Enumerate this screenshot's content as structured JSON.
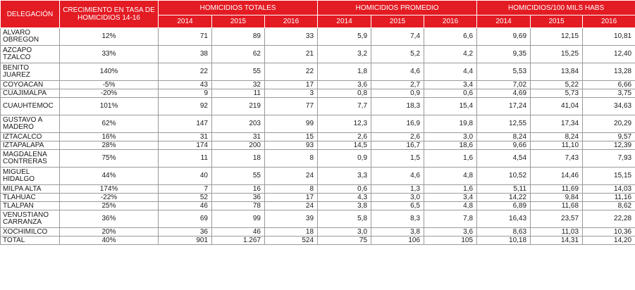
{
  "headers": {
    "delegacion": "DELEGACIÓN",
    "crecimiento": "CRECIMIENTO EN TASA DE HOMICIDIOS 14-16",
    "groups": [
      "HOMICIDIOS TOTALES",
      "HOMICIDIOS PROMEDIO",
      "HOMICIDIOS/100 MILS HABS"
    ],
    "years": [
      "2014",
      "2015",
      "2016"
    ]
  },
  "rows": [
    {
      "name": "ALVARO OBREGON",
      "growth": "12%",
      "tot": [
        "71",
        "89",
        "33"
      ],
      "prom": [
        "5,9",
        "7,4",
        "6,6"
      ],
      "rate": [
        "9,69",
        "12,15",
        "10,81"
      ]
    },
    {
      "name": "AZCAPO TZALCO",
      "growth": "33%",
      "tot": [
        "38",
        "62",
        "21"
      ],
      "prom": [
        "3,2",
        "5,2",
        "4,2"
      ],
      "rate": [
        "9,35",
        "15,25",
        "12,40"
      ]
    },
    {
      "name": "BENITO JUAREZ",
      "growth": "140%",
      "tot": [
        "22",
        "55",
        "22"
      ],
      "prom": [
        "1,8",
        "4,6",
        "4,4"
      ],
      "rate": [
        "5,53",
        "13,84",
        "13,28"
      ]
    },
    {
      "name": "COYOACAN",
      "growth": "-5%",
      "tot": [
        "43",
        "32",
        "17"
      ],
      "prom": [
        "3,6",
        "2,7",
        "3,4"
      ],
      "rate": [
        "7,02",
        "5,22",
        "6,66"
      ]
    },
    {
      "name": "CUAJIMALPA",
      "growth": "-20%",
      "tot": [
        "9",
        "11",
        "3"
      ],
      "prom": [
        "0,8",
        "0,9",
        "0,6"
      ],
      "rate": [
        "4,69",
        "5,73",
        "3,75"
      ]
    },
    {
      "name": "CUAUHTEMOC",
      "growth": "101%",
      "tot": [
        "92",
        "219",
        "77"
      ],
      "prom": [
        "7,7",
        "18,3",
        "15,4"
      ],
      "rate": [
        "17,24",
        "41,04",
        "34,63"
      ]
    },
    {
      "name": "GUSTAVO A MADERO",
      "growth": "62%",
      "tot": [
        "147",
        "203",
        "99"
      ],
      "prom": [
        "12,3",
        "16,9",
        "19,8"
      ],
      "rate": [
        "12,55",
        "17,34",
        "20,29"
      ]
    },
    {
      "name": "IZTACALCO",
      "growth": "16%",
      "tot": [
        "31",
        "31",
        "15"
      ],
      "prom": [
        "2,6",
        "2,6",
        "3,0"
      ],
      "rate": [
        "8,24",
        "8,24",
        "9,57"
      ]
    },
    {
      "name": "IZTAPALAPA",
      "growth": "28%",
      "tot": [
        "174",
        "200",
        "93"
      ],
      "prom": [
        "14,5",
        "16,7",
        "18,6"
      ],
      "rate": [
        "9,66",
        "11,10",
        "12,39"
      ]
    },
    {
      "name": "MAGDALENA CONTRERAS",
      "growth": "75%",
      "tot": [
        "11",
        "18",
        "8"
      ],
      "prom": [
        "0,9",
        "1,5",
        "1,6"
      ],
      "rate": [
        "4,54",
        "7,43",
        "7,93"
      ]
    },
    {
      "name": "MIGUEL HIDALGO",
      "growth": "44%",
      "tot": [
        "40",
        "55",
        "24"
      ],
      "prom": [
        "3,3",
        "4,6",
        "4,8"
      ],
      "rate": [
        "10,52",
        "14,46",
        "15,15"
      ]
    },
    {
      "name": "MILPA ALTA",
      "growth": "174%",
      "tot": [
        "7",
        "16",
        "8"
      ],
      "prom": [
        "0,6",
        "1,3",
        "1,6"
      ],
      "rate": [
        "5,11",
        "11,69",
        "14,03"
      ]
    },
    {
      "name": "TLAHUAC",
      "growth": "-22%",
      "tot": [
        "52",
        "36",
        "17"
      ],
      "prom": [
        "4,3",
        "3,0",
        "3,4"
      ],
      "rate": [
        "14,22",
        "9,84",
        "11,16"
      ]
    },
    {
      "name": "TLALPAN",
      "growth": "25%",
      "tot": [
        "46",
        "78",
        "24"
      ],
      "prom": [
        "3,8",
        "6,5",
        "4,8"
      ],
      "rate": [
        "6,89",
        "11,68",
        "8,62"
      ]
    },
    {
      "name": "VENUSTIANO CARRANZA",
      "growth": "36%",
      "tot": [
        "69",
        "99",
        "39"
      ],
      "prom": [
        "5,8",
        "8,3",
        "7,8"
      ],
      "rate": [
        "16,43",
        "23,57",
        "22,28"
      ]
    },
    {
      "name": "XOCHIMILCO",
      "growth": "20%",
      "tot": [
        "36",
        "46",
        "18"
      ],
      "prom": [
        "3,0",
        "3,8",
        "3,6"
      ],
      "rate": [
        "8,63",
        "11,03",
        "10,36"
      ]
    },
    {
      "name": "TOTAL",
      "growth": "40%",
      "tot": [
        "901",
        "1.267",
        "524"
      ],
      "prom": [
        "75",
        "106",
        "105"
      ],
      "rate": [
        "10,18",
        "14,31",
        "14,20"
      ]
    }
  ],
  "colors": {
    "header_bg": "#e31b23",
    "header_text": "#ffffff",
    "grid": "#9a9a9a"
  }
}
